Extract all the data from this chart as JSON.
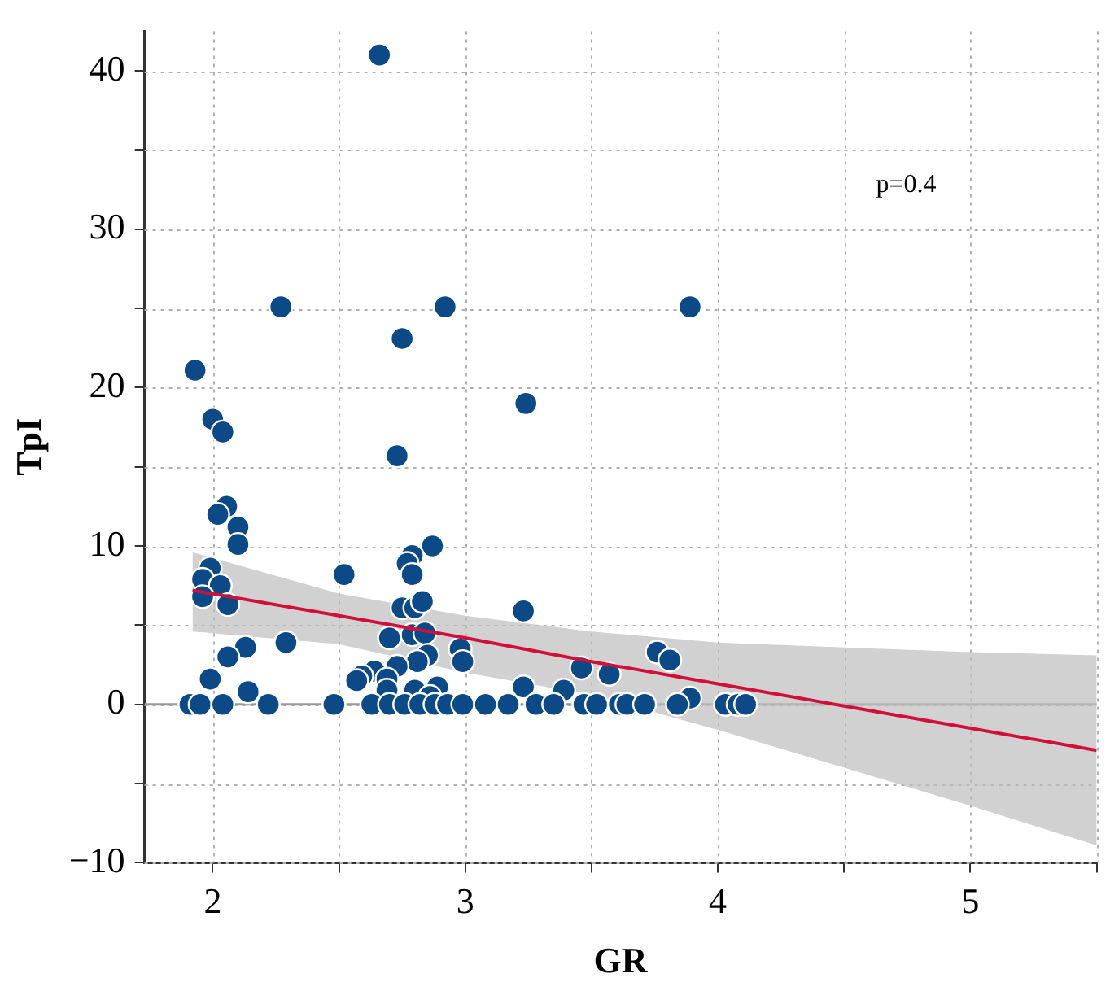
{
  "chart_data": {
    "type": "scatter",
    "xlabel": "GR",
    "ylabel": "TpI",
    "annotations": [
      "p=0.4"
    ],
    "xlim": [
      1.73,
      5.5
    ],
    "xticks": [
      2,
      {
        "value": 2.5,
        "label": null
      },
      3,
      {
        "value": 3.5,
        "label": null
      },
      4,
      {
        "value": 4.5,
        "label": null
      },
      5,
      {
        "value": 5.5,
        "label": null
      }
    ],
    "ylim": [
      -10,
      42.5
    ],
    "yticks": [
      -10,
      {
        "value": -5,
        "label": null
      },
      0,
      {
        "value": 5,
        "label": null
      },
      10,
      {
        "value": 15,
        "label": null
      },
      20,
      {
        "value": 25,
        "label": null
      },
      30,
      {
        "value": 35,
        "label": null
      },
      40
    ],
    "grid": true,
    "legend": false,
    "marker": "circle",
    "ref_lines": [
      {
        "axis": "y",
        "value": 0,
        "color": "#999999"
      }
    ],
    "series": [
      {
        "color": "#0b4a87",
        "x": [
          2.66,
          1.93,
          2.27,
          2.92,
          2.75,
          3.24,
          2.0,
          2.04,
          2.73,
          3.89,
          2.055,
          2.02,
          2.1,
          2.1,
          2.87,
          2.79,
          2.77,
          2.79,
          2.52,
          1.99,
          1.96,
          2.03,
          1.96,
          2.06,
          2.75,
          2.8,
          2.83,
          3.23,
          2.79,
          2.84,
          2.7,
          2.29,
          2.13,
          2.06,
          2.98,
          2.99,
          2.85,
          2.81,
          2.73,
          2.64,
          2.59,
          2.57,
          2.69,
          2.69,
          1.99,
          2.14,
          2.8,
          2.89,
          2.86,
          3.23,
          3.39,
          3.46,
          3.57,
          3.76,
          3.81,
          3.89,
          1.91,
          1.95,
          2.04,
          2.22,
          2.48,
          2.63,
          2.7,
          2.76,
          2.82,
          2.88,
          2.93,
          2.99,
          3.08,
          3.17,
          3.28,
          3.35,
          3.47,
          3.52,
          3.61,
          3.64,
          3.71,
          3.84,
          4.03,
          4.08,
          4.11
        ],
        "values": [
          41,
          21.1,
          25.1,
          25.1,
          23.1,
          19,
          18,
          17.2,
          15.7,
          25.1,
          12.5,
          12,
          11.2,
          10.1,
          10,
          9.4,
          8.9,
          8.2,
          8.2,
          8.6,
          7.9,
          7.5,
          6.8,
          6.3,
          6.1,
          6.1,
          6.5,
          5.9,
          4.4,
          4.5,
          4.2,
          3.9,
          3.6,
          3,
          3.5,
          2.7,
          3.1,
          2.7,
          2.4,
          2.1,
          1.8,
          1.5,
          1.6,
          0.9,
          1.6,
          0.8,
          0.9,
          1.1,
          0.5,
          1.1,
          0.9,
          2.3,
          1.9,
          3.3,
          2.8,
          0.4,
          0,
          0,
          0,
          0,
          0,
          0,
          0,
          0,
          0,
          0,
          0,
          0,
          0,
          0,
          0,
          0,
          0,
          0,
          0,
          0,
          0,
          0,
          0,
          0,
          0
        ]
      },
      {
        "type": "line",
        "color": "#d0103a",
        "marker": "none",
        "x": [
          1.92,
          2.5,
          3,
          3.5,
          4,
          4.5,
          5,
          5.5
        ],
        "values": [
          7.2,
          5.6,
          4.2,
          2.7,
          1.3,
          -0.1,
          -1.5,
          -2.9
        ],
        "upper": [
          9.6,
          7.0,
          5.6,
          4.6,
          3.9,
          3.6,
          3.3,
          3.1
        ],
        "lower": [
          4.6,
          3.8,
          2.0,
          0.6,
          -1.6,
          -4.0,
          -6.4,
          -8.9
        ]
      }
    ]
  }
}
